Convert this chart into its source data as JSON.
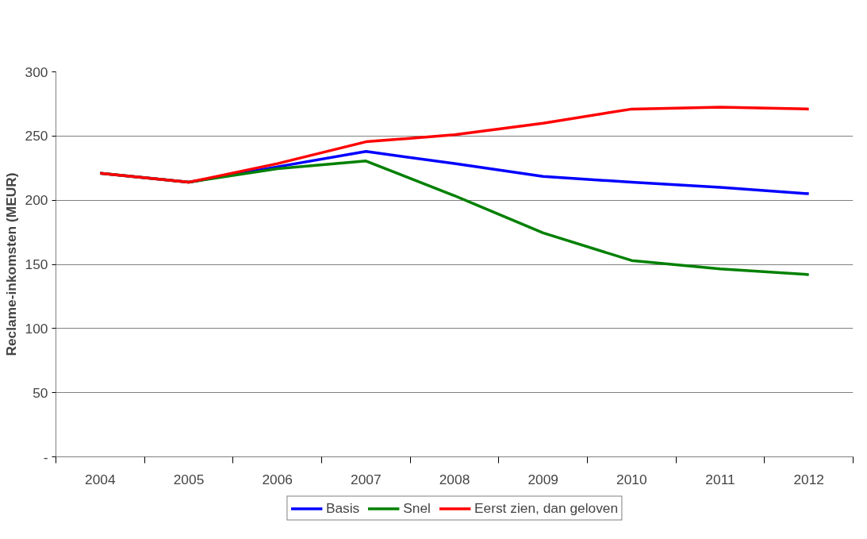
{
  "chart_data": {
    "type": "line",
    "ylabel": "Reclame-inkomsten (MEUR)",
    "categories": [
      "2004",
      "2005",
      "2006",
      "2007",
      "2008",
      "2009",
      "2010",
      "2011",
      "2012"
    ],
    "series": [
      {
        "name": "Basis",
        "color": "#0000ff",
        "values": [
          221,
          214,
          226,
          238,
          228.5,
          218.5,
          214,
          210,
          205
        ]
      },
      {
        "name": "Snel",
        "color": "#008000",
        "values": [
          221,
          214,
          224.5,
          230.5,
          203.5,
          174.5,
          153,
          146.5,
          142
        ]
      },
      {
        "name": "Eerst zien, dan geloven",
        "color": "#ff0000",
        "values": [
          221,
          214,
          228.5,
          245.5,
          251,
          260,
          271,
          272.5,
          271
        ]
      }
    ],
    "ylim": [
      0,
      300
    ],
    "yticks": [
      {
        "value": 0,
        "label": "-"
      },
      50,
      100,
      150,
      200,
      250,
      300
    ],
    "grid": "y",
    "legend": "bottom",
    "marker": "none",
    "line_style": "solid"
  }
}
